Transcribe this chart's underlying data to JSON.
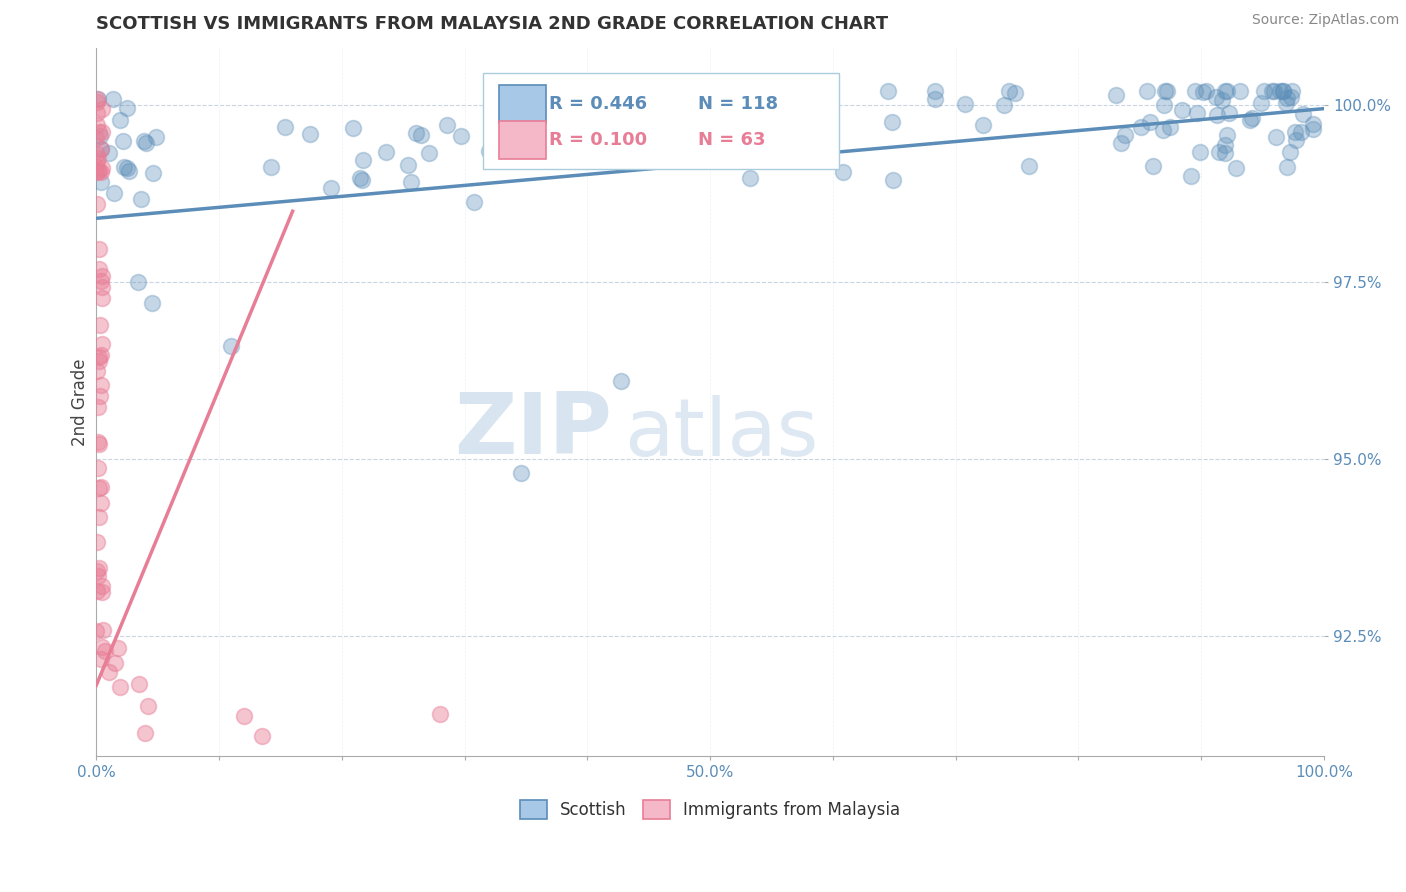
{
  "title": "SCOTTISH VS IMMIGRANTS FROM MALAYSIA 2ND GRADE CORRELATION CHART",
  "source": "Source: ZipAtlas.com",
  "ylabel": "2nd Grade",
  "xlim": [
    0,
    1.0
  ],
  "ylim": [
    0.908,
    1.008
  ],
  "ytick_positions": [
    0.925,
    0.95,
    0.975,
    1.0
  ],
  "ytick_labels": [
    "92.5%",
    "95.0%",
    "97.5%",
    "100.0%"
  ],
  "xtick_positions": [
    0.0,
    0.1,
    0.2,
    0.3,
    0.4,
    0.5,
    0.6,
    0.7,
    0.8,
    0.9,
    1.0
  ],
  "xtick_labels": [
    "0.0%",
    "",
    "",
    "",
    "",
    "50.0%",
    "",
    "",
    "",
    "",
    "100.0%"
  ],
  "legend_R_blue": "R = 0.446",
  "legend_N_blue": "N = 118",
  "legend_R_pink": "R = 0.100",
  "legend_N_pink": "N = 63",
  "blue_color": "#5B8DB8",
  "pink_color": "#E87D96",
  "blue_swatch": "#A8C8E8",
  "pink_swatch": "#F4B8C8",
  "watermark_zip": "ZIP",
  "watermark_atlas": "atlas",
  "blue_trend_x": [
    0.0,
    1.0
  ],
  "blue_trend_y": [
    0.984,
    0.9995
  ],
  "pink_trend_x": [
    0.0,
    0.16
  ],
  "pink_trend_y": [
    0.918,
    0.985
  ]
}
